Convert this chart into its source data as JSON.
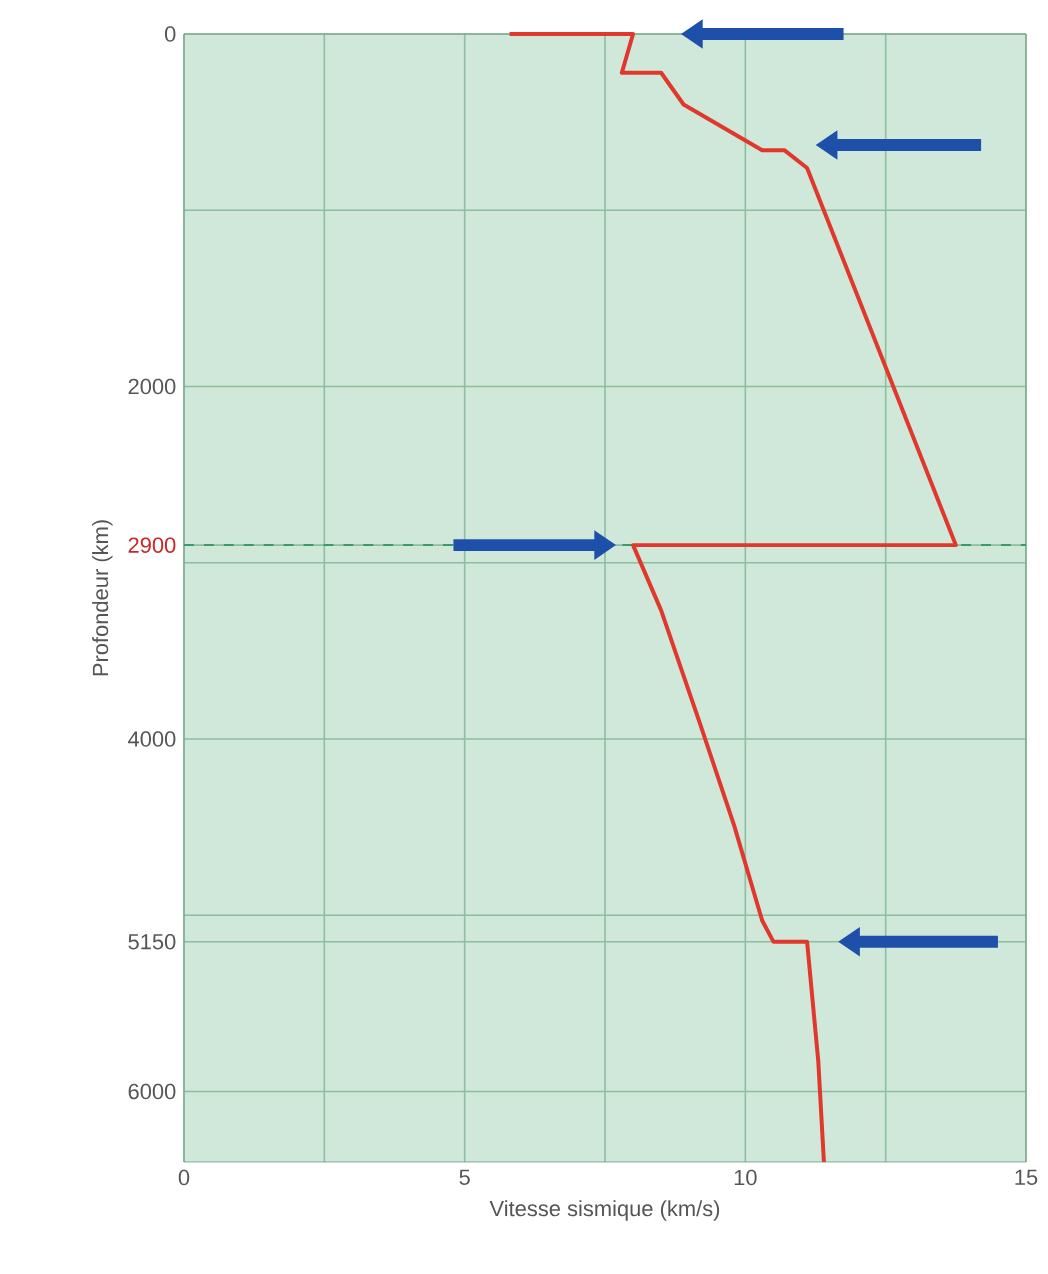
{
  "chart_data": {
    "type": "line",
    "xlabel": "Vitesse sismique (km/s)",
    "ylabel": "Profondeur (km)",
    "series": [
      {
        "color": "#e0382c",
        "x": [
          5.8,
          8.0,
          7.8,
          8.5,
          8.9,
          10.3,
          10.7,
          11.1,
          13.75,
          8.0,
          8.5,
          9.2,
          9.8,
          10.3,
          10.5,
          11.1,
          11.3,
          11.4
        ],
        "values": [
          0,
          0,
          220,
          220,
          400,
          660,
          660,
          760,
          2900,
          2900,
          3270,
          3920,
          4490,
          5030,
          5150,
          5150,
          5830,
          6400
        ]
      }
    ],
    "xlim": [
      0,
      15
    ],
    "ylim": [
      6400,
      0
    ],
    "xticks": [
      0,
      {
        "value": 2.5,
        "label": null
      },
      5,
      {
        "value": 7.5,
        "label": null
      },
      10,
      {
        "value": 12.5,
        "label": null
      },
      15
    ],
    "yticks": [
      0,
      {
        "value": 1000,
        "label": null
      },
      2000,
      2900,
      {
        "value": 3000,
        "label": null
      },
      4000,
      {
        "value": 5000,
        "label": null
      },
      5150,
      6000
    ],
    "ref_lines": [
      {
        "axis": "y",
        "value": 2900,
        "color": "#3a9a6a",
        "line_style": "dashed"
      }
    ],
    "grid": true,
    "marker": "none",
    "line_style": "solid"
  }
}
